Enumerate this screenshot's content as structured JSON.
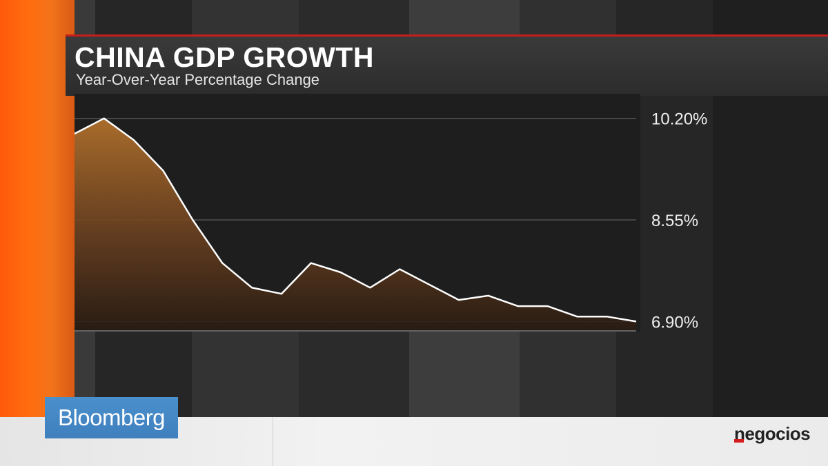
{
  "header": {
    "title": "CHINA GDP GROWTH",
    "subtitle": "Year-Over-Year Percentage Change"
  },
  "branding": {
    "broadcaster": "Bloomberg",
    "publisher": "negocios"
  },
  "colors": {
    "accent_orange": "#ff6410",
    "title_rule_red": "#c61d1d",
    "line": "#ffffff",
    "area_top": "#a86a2c",
    "bloomberg_blue": "#4a8ccb"
  },
  "chart_data": {
    "type": "area",
    "title": "CHINA GDP GROWTH",
    "subtitle": "Year-Over-Year Percentage Change",
    "xlabel": "",
    "ylabel": "",
    "y_axis_position": "right",
    "ylim": [
      6.77,
      10.6
    ],
    "yticks": [
      10.2,
      8.55,
      6.9
    ],
    "ytick_labels": [
      "10.20%",
      "8.55%",
      "6.90%"
    ],
    "grid": true,
    "series": [
      {
        "values": [
          9.95,
          10.2,
          9.85,
          9.35,
          8.55,
          7.85,
          7.45,
          7.35,
          7.85,
          7.7,
          7.45,
          7.75,
          7.5,
          7.25,
          7.32,
          7.15,
          7.15,
          6.98,
          6.98,
          6.9
        ]
      }
    ]
  }
}
